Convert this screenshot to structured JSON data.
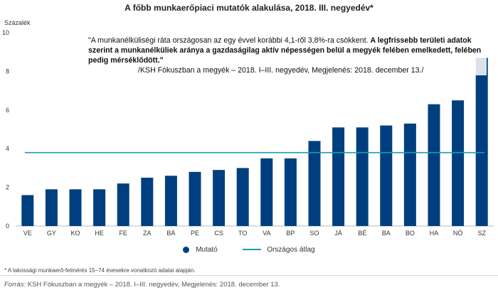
{
  "chart_data": {
    "type": "bar",
    "title": "A főbb munkaerőpiaci mutatók alakulása, 2018. III. negyedév*",
    "ylabel": "Százalék",
    "xlabel": "",
    "ylim": [
      0,
      10
    ],
    "yticks": [
      0,
      2,
      4,
      6,
      8,
      10
    ],
    "categories": [
      "VE",
      "GY",
      "KO",
      "HE",
      "FE",
      "ZA",
      "BÁ",
      "PE",
      "CS",
      "TO",
      "VA",
      "BP",
      "SO",
      "JÁ",
      "BÉ",
      "BA",
      "BO",
      "HA",
      "NÓ",
      "SZ"
    ],
    "series": [
      {
        "name": "Mutató",
        "type": "bar",
        "color": "#003f7f",
        "values": [
          1.6,
          1.9,
          1.9,
          1.9,
          2.2,
          2.5,
          2.6,
          2.8,
          2.9,
          3.0,
          3.5,
          3.5,
          4.4,
          5.1,
          5.1,
          5.2,
          5.3,
          6.3,
          6.5,
          8.7
        ]
      },
      {
        "name": "Országos átlag",
        "type": "line",
        "color": "#1a9cb0",
        "value": 3.8
      }
    ],
    "grid": false,
    "legend_position": "bottom"
  },
  "annotation": {
    "quote_normal": "\"A munkanélküliségi ráta országosan az egy évvel korábbi 4,1-ről 3,8%-ra csökkent.",
    "quote_bold": "A legfrissebb területi adatok szerint a munkanélküliek aránya a gazdaságilag aktív népességen belül a megyék felében emelkedett, felében pedig mérséklődött.\"",
    "citation": "/KSH Fókuszban a megyék – 2018. I–III. negyedév, Megjelenés: 2018. december 13./"
  },
  "footnote": "* A lakossági munkaerő-felmérés 15–74 évesekre vonatkozó adatai alapján.",
  "source": {
    "label": "Forrás:",
    "text": "KSH Fókuszban a megyék – 2018. I–III. negyedév, Megjelenés: 2018. december 13."
  }
}
